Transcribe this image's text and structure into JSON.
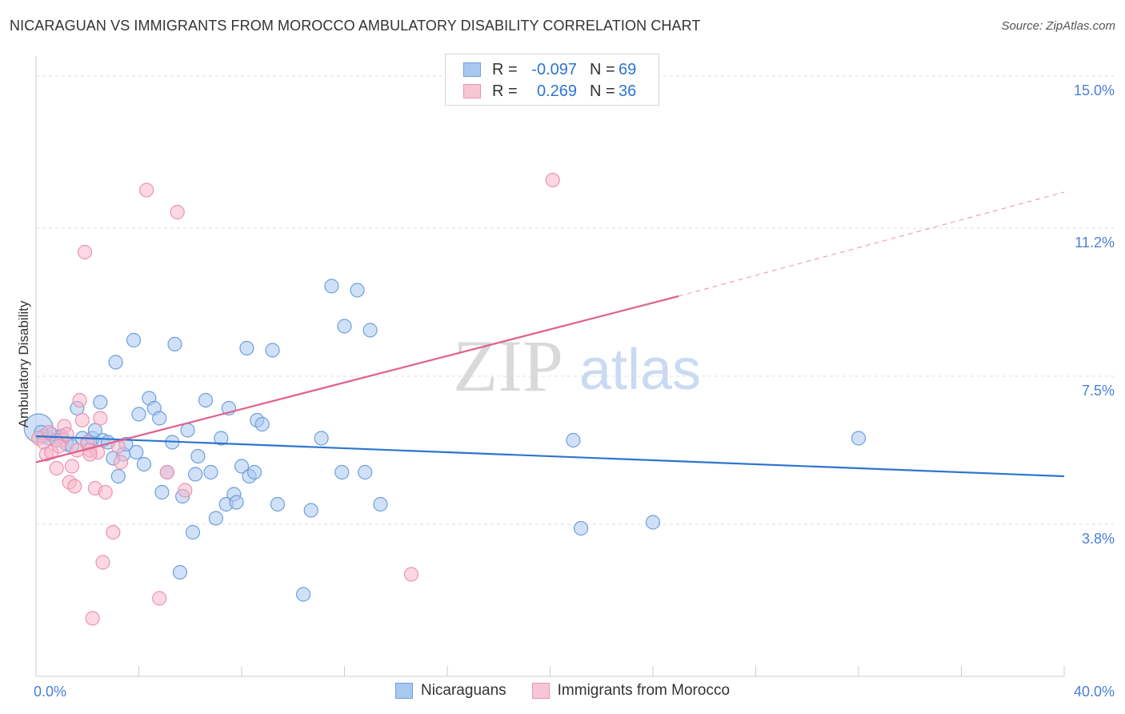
{
  "title": "NICARAGUAN VS IMMIGRANTS FROM MOROCCO AMBULATORY DISABILITY CORRELATION CHART",
  "source": "Source: ZipAtlas.com",
  "watermark": {
    "zip": "ZIP",
    "atlas": "atlas"
  },
  "legend": {
    "rows": [
      {
        "r_label": "R =",
        "r_value": "-0.097",
        "n_label": "N =",
        "n_value": "69"
      },
      {
        "r_label": "R =",
        "r_value": "0.269",
        "n_label": "N =",
        "n_value": "36"
      }
    ]
  },
  "colors": {
    "blue_fill": "#a9c8f0",
    "blue_stroke": "#6f9edc",
    "blue_line": "#2e74d0",
    "pink_fill": "#f7b8cb",
    "pink_stroke": "#eb93b0",
    "pink_line": "#e0628c",
    "tick_label": "#4a7fd6",
    "grid": "#dcdcdc",
    "axis": "#cccccc"
  },
  "chart_data": {
    "type": "scatter",
    "title": "NICARAGUAN VS IMMIGRANTS FROM MOROCCO AMBULATORY DISABILITY CORRELATION CHART",
    "xlabel": "",
    "ylabel": "Ambulatory Disability",
    "xlim": [
      0,
      40
    ],
    "ylim": [
      0,
      15.5
    ],
    "x_tick_labels": [
      {
        "value": 0,
        "label": "0.0%"
      },
      {
        "value": 40,
        "label": "40.0%"
      }
    ],
    "y_ticks": [
      {
        "value": 3.8,
        "label": "3.8%"
      },
      {
        "value": 7.5,
        "label": "7.5%"
      },
      {
        "value": 11.2,
        "label": "11.2%"
      },
      {
        "value": 15.0,
        "label": "15.0%"
      }
    ],
    "grid": true,
    "legend_position": "bottom",
    "series": [
      {
        "name": "Nicaraguans",
        "r": -0.097,
        "n": 69,
        "trend": {
          "x0": 0,
          "y0": 6.0,
          "x1": 40,
          "y1": 5.0
        },
        "points": [
          [
            0.1,
            6.2
          ],
          [
            0.3,
            6.0
          ],
          [
            0.5,
            5.95
          ],
          [
            0.6,
            6.05
          ],
          [
            0.8,
            5.9
          ],
          [
            1.0,
            6.0
          ],
          [
            1.2,
            5.8
          ],
          [
            1.4,
            5.75
          ],
          [
            1.6,
            6.7
          ],
          [
            1.8,
            5.95
          ],
          [
            2.0,
            5.8
          ],
          [
            2.2,
            5.95
          ],
          [
            2.3,
            6.15
          ],
          [
            2.5,
            6.85
          ],
          [
            2.6,
            5.9
          ],
          [
            2.8,
            5.85
          ],
          [
            3.0,
            5.45
          ],
          [
            3.1,
            7.85
          ],
          [
            3.2,
            5.0
          ],
          [
            3.4,
            5.55
          ],
          [
            3.5,
            5.8
          ],
          [
            3.8,
            8.4
          ],
          [
            3.9,
            5.6
          ],
          [
            4.0,
            6.55
          ],
          [
            4.2,
            5.3
          ],
          [
            4.4,
            6.95
          ],
          [
            4.6,
            6.7
          ],
          [
            4.8,
            6.45
          ],
          [
            4.9,
            4.6
          ],
          [
            5.1,
            5.1
          ],
          [
            5.3,
            5.85
          ],
          [
            5.4,
            8.3
          ],
          [
            5.6,
            2.6
          ],
          [
            5.7,
            4.5
          ],
          [
            5.9,
            6.15
          ],
          [
            6.1,
            3.6
          ],
          [
            6.2,
            5.05
          ],
          [
            6.3,
            5.5
          ],
          [
            6.6,
            6.9
          ],
          [
            6.8,
            5.1
          ],
          [
            7.0,
            3.95
          ],
          [
            7.2,
            5.95
          ],
          [
            7.4,
            4.3
          ],
          [
            7.5,
            6.7
          ],
          [
            7.7,
            4.55
          ],
          [
            7.8,
            4.35
          ],
          [
            8.0,
            5.25
          ],
          [
            8.2,
            8.2
          ],
          [
            8.3,
            5.0
          ],
          [
            8.5,
            5.1
          ],
          [
            8.6,
            6.4
          ],
          [
            8.8,
            6.3
          ],
          [
            9.2,
            8.15
          ],
          [
            9.4,
            4.3
          ],
          [
            10.4,
            2.05
          ],
          [
            10.7,
            4.15
          ],
          [
            11.1,
            5.95
          ],
          [
            11.5,
            9.75
          ],
          [
            12.0,
            8.75
          ],
          [
            11.9,
            5.1
          ],
          [
            12.5,
            9.65
          ],
          [
            12.8,
            5.1
          ],
          [
            13.0,
            8.65
          ],
          [
            13.4,
            4.3
          ],
          [
            20.9,
            5.9
          ],
          [
            21.2,
            3.7
          ],
          [
            24.0,
            3.85
          ],
          [
            32.0,
            5.95
          ],
          [
            0.2,
            6.1
          ]
        ]
      },
      {
        "name": "Immigrants from Morocco",
        "r": 0.269,
        "n": 36,
        "trend": {
          "x0": 0,
          "y0": 5.35,
          "x1": 25,
          "y1": 9.5,
          "dash_x1": 40,
          "dash_y1": 12.1
        },
        "points": [
          [
            0.1,
            5.95
          ],
          [
            0.3,
            5.85
          ],
          [
            0.4,
            5.55
          ],
          [
            0.6,
            5.6
          ],
          [
            0.8,
            5.2
          ],
          [
            1.0,
            5.9
          ],
          [
            1.1,
            6.25
          ],
          [
            1.3,
            4.85
          ],
          [
            1.4,
            5.25
          ],
          [
            1.5,
            4.75
          ],
          [
            1.6,
            5.65
          ],
          [
            1.7,
            6.9
          ],
          [
            1.8,
            6.4
          ],
          [
            1.9,
            10.6
          ],
          [
            2.0,
            5.85
          ],
          [
            2.1,
            5.65
          ],
          [
            2.2,
            1.45
          ],
          [
            2.3,
            4.7
          ],
          [
            2.4,
            5.6
          ],
          [
            2.5,
            6.45
          ],
          [
            2.6,
            2.85
          ],
          [
            2.7,
            4.6
          ],
          [
            3.0,
            3.6
          ],
          [
            3.2,
            5.75
          ],
          [
            3.3,
            5.35
          ],
          [
            4.3,
            12.15
          ],
          [
            4.8,
            1.95
          ],
          [
            5.1,
            5.1
          ],
          [
            5.5,
            11.6
          ],
          [
            5.8,
            4.65
          ],
          [
            14.6,
            2.55
          ],
          [
            20.1,
            12.4
          ],
          [
            0.5,
            6.1
          ],
          [
            0.9,
            5.75
          ],
          [
            1.2,
            6.05
          ],
          [
            2.1,
            5.55
          ]
        ]
      }
    ]
  },
  "bottom_legend": [
    {
      "label": "Nicaraguans"
    },
    {
      "label": "Immigrants from Morocco"
    }
  ]
}
